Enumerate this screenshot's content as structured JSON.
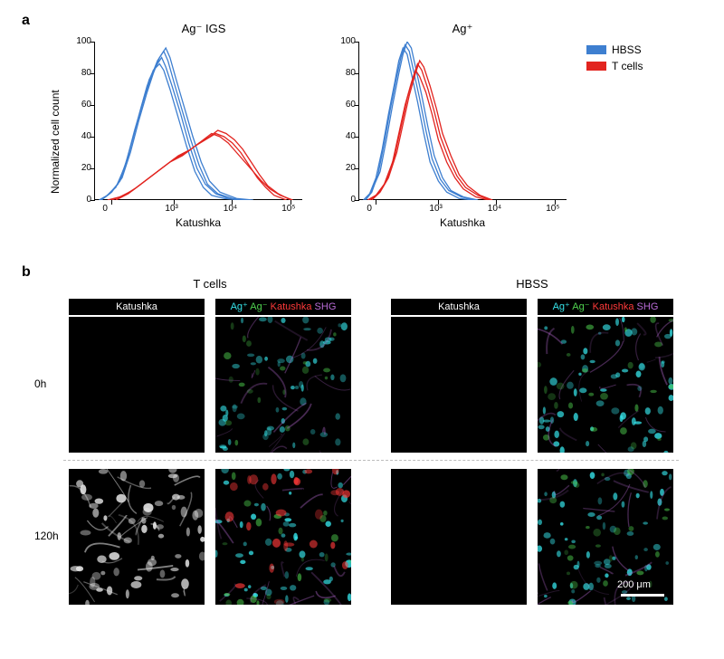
{
  "labels": {
    "panel_a": "a",
    "panel_b": "b"
  },
  "panel_a": {
    "chart1_title": "Ag⁻ IGS",
    "chart2_title": "Ag⁺",
    "ylabel": "Normalized cell count",
    "xlabel": "Katushka",
    "ylim": [
      0,
      100
    ],
    "ytick_step": 20,
    "yticks": [
      "0",
      "20",
      "40",
      "60",
      "80",
      "100"
    ],
    "xticks": [
      "0",
      "10³",
      "10⁴",
      "10⁵"
    ],
    "xtick_pos": [
      0.08,
      0.38,
      0.66,
      0.94
    ],
    "chart_bg": "#ffffff",
    "axis_color": "#000000",
    "colors": {
      "hbss": "#3e7fd0",
      "tcells": "#e2241f"
    },
    "line_width": 1.3,
    "legend": [
      {
        "label": "HBSS",
        "color": "#3e7fd0"
      },
      {
        "label": "T cells",
        "color": "#e2241f"
      }
    ],
    "chart1": {
      "hbss": [
        [
          [
            0.02,
            0
          ],
          [
            0.05,
            2
          ],
          [
            0.1,
            8
          ],
          [
            0.14,
            20
          ],
          [
            0.18,
            38
          ],
          [
            0.22,
            58
          ],
          [
            0.25,
            72
          ],
          [
            0.28,
            82
          ],
          [
            0.31,
            86
          ],
          [
            0.33,
            82
          ],
          [
            0.36,
            70
          ],
          [
            0.4,
            52
          ],
          [
            0.44,
            34
          ],
          [
            0.48,
            18
          ],
          [
            0.52,
            8
          ],
          [
            0.56,
            3
          ],
          [
            0.62,
            1
          ],
          [
            0.7,
            0
          ]
        ],
        [
          [
            0.02,
            0
          ],
          [
            0.06,
            3
          ],
          [
            0.11,
            10
          ],
          [
            0.15,
            24
          ],
          [
            0.19,
            44
          ],
          [
            0.23,
            62
          ],
          [
            0.26,
            76
          ],
          [
            0.29,
            84
          ],
          [
            0.32,
            90
          ],
          [
            0.34,
            84
          ],
          [
            0.37,
            72
          ],
          [
            0.41,
            55
          ],
          [
            0.45,
            36
          ],
          [
            0.49,
            20
          ],
          [
            0.53,
            10
          ],
          [
            0.58,
            4
          ],
          [
            0.64,
            1
          ],
          [
            0.72,
            0
          ]
        ],
        [
          [
            0.03,
            0
          ],
          [
            0.07,
            4
          ],
          [
            0.12,
            12
          ],
          [
            0.16,
            28
          ],
          [
            0.2,
            48
          ],
          [
            0.24,
            66
          ],
          [
            0.27,
            78
          ],
          [
            0.3,
            88
          ],
          [
            0.33,
            94
          ],
          [
            0.35,
            88
          ],
          [
            0.38,
            74
          ],
          [
            0.42,
            56
          ],
          [
            0.46,
            38
          ],
          [
            0.5,
            22
          ],
          [
            0.54,
            10
          ],
          [
            0.59,
            4
          ],
          [
            0.66,
            1
          ],
          [
            0.74,
            0
          ]
        ],
        [
          [
            0.03,
            0
          ],
          [
            0.08,
            5
          ],
          [
            0.13,
            14
          ],
          [
            0.17,
            30
          ],
          [
            0.21,
            50
          ],
          [
            0.25,
            68
          ],
          [
            0.28,
            80
          ],
          [
            0.31,
            90
          ],
          [
            0.34,
            96
          ],
          [
            0.36,
            90
          ],
          [
            0.39,
            76
          ],
          [
            0.43,
            58
          ],
          [
            0.47,
            40
          ],
          [
            0.51,
            24
          ],
          [
            0.55,
            12
          ],
          [
            0.6,
            5
          ],
          [
            0.68,
            1
          ],
          [
            0.76,
            0
          ]
        ]
      ],
      "tcells": [
        [
          [
            0.06,
            0
          ],
          [
            0.12,
            2
          ],
          [
            0.18,
            6
          ],
          [
            0.24,
            12
          ],
          [
            0.3,
            18
          ],
          [
            0.36,
            24
          ],
          [
            0.42,
            28
          ],
          [
            0.48,
            34
          ],
          [
            0.53,
            38
          ],
          [
            0.58,
            42
          ],
          [
            0.62,
            40
          ],
          [
            0.66,
            36
          ],
          [
            0.7,
            30
          ],
          [
            0.74,
            22
          ],
          [
            0.78,
            14
          ],
          [
            0.82,
            8
          ],
          [
            0.86,
            3
          ],
          [
            0.92,
            0
          ]
        ],
        [
          [
            0.08,
            0
          ],
          [
            0.14,
            3
          ],
          [
            0.2,
            8
          ],
          [
            0.26,
            14
          ],
          [
            0.32,
            20
          ],
          [
            0.38,
            26
          ],
          [
            0.44,
            30
          ],
          [
            0.5,
            36
          ],
          [
            0.55,
            40
          ],
          [
            0.59,
            44
          ],
          [
            0.63,
            42
          ],
          [
            0.67,
            38
          ],
          [
            0.71,
            32
          ],
          [
            0.75,
            24
          ],
          [
            0.79,
            16
          ],
          [
            0.83,
            9
          ],
          [
            0.88,
            4
          ],
          [
            0.94,
            0
          ]
        ],
        [
          [
            0.1,
            0
          ],
          [
            0.16,
            4
          ],
          [
            0.22,
            10
          ],
          [
            0.28,
            16
          ],
          [
            0.34,
            22
          ],
          [
            0.4,
            28
          ],
          [
            0.46,
            32
          ],
          [
            0.52,
            38
          ],
          [
            0.56,
            42
          ],
          [
            0.6,
            40
          ],
          [
            0.64,
            36
          ],
          [
            0.68,
            30
          ],
          [
            0.72,
            24
          ],
          [
            0.76,
            18
          ],
          [
            0.8,
            12
          ],
          [
            0.84,
            7
          ],
          [
            0.89,
            3
          ],
          [
            0.95,
            0
          ]
        ]
      ]
    },
    "chart2": {
      "hbss": [
        [
          [
            0.02,
            0
          ],
          [
            0.05,
            4
          ],
          [
            0.08,
            14
          ],
          [
            0.11,
            32
          ],
          [
            0.14,
            54
          ],
          [
            0.17,
            74
          ],
          [
            0.19,
            88
          ],
          [
            0.21,
            96
          ],
          [
            0.23,
            92
          ],
          [
            0.25,
            80
          ],
          [
            0.28,
            62
          ],
          [
            0.31,
            42
          ],
          [
            0.34,
            24
          ],
          [
            0.38,
            12
          ],
          [
            0.42,
            5
          ],
          [
            0.48,
            1
          ],
          [
            0.55,
            0
          ]
        ],
        [
          [
            0.03,
            0
          ],
          [
            0.06,
            5
          ],
          [
            0.09,
            16
          ],
          [
            0.12,
            36
          ],
          [
            0.15,
            58
          ],
          [
            0.18,
            78
          ],
          [
            0.2,
            90
          ],
          [
            0.22,
            98
          ],
          [
            0.24,
            94
          ],
          [
            0.26,
            82
          ],
          [
            0.29,
            64
          ],
          [
            0.32,
            44
          ],
          [
            0.35,
            26
          ],
          [
            0.39,
            13
          ],
          [
            0.43,
            6
          ],
          [
            0.49,
            2
          ],
          [
            0.56,
            0
          ]
        ],
        [
          [
            0.03,
            0
          ],
          [
            0.06,
            6
          ],
          [
            0.1,
            18
          ],
          [
            0.13,
            38
          ],
          [
            0.16,
            60
          ],
          [
            0.19,
            80
          ],
          [
            0.21,
            92
          ],
          [
            0.23,
            100
          ],
          [
            0.25,
            96
          ],
          [
            0.27,
            84
          ],
          [
            0.3,
            66
          ],
          [
            0.33,
            46
          ],
          [
            0.36,
            28
          ],
          [
            0.4,
            14
          ],
          [
            0.44,
            6
          ],
          [
            0.5,
            2
          ],
          [
            0.57,
            0
          ]
        ]
      ],
      "tcells": [
        [
          [
            0.04,
            0
          ],
          [
            0.08,
            3
          ],
          [
            0.12,
            10
          ],
          [
            0.16,
            24
          ],
          [
            0.19,
            42
          ],
          [
            0.22,
            60
          ],
          [
            0.25,
            74
          ],
          [
            0.27,
            82
          ],
          [
            0.29,
            78
          ],
          [
            0.32,
            68
          ],
          [
            0.35,
            54
          ],
          [
            0.38,
            38
          ],
          [
            0.42,
            24
          ],
          [
            0.46,
            14
          ],
          [
            0.5,
            7
          ],
          [
            0.56,
            2
          ],
          [
            0.62,
            0
          ]
        ],
        [
          [
            0.05,
            0
          ],
          [
            0.09,
            4
          ],
          [
            0.13,
            12
          ],
          [
            0.17,
            28
          ],
          [
            0.2,
            46
          ],
          [
            0.23,
            64
          ],
          [
            0.26,
            78
          ],
          [
            0.28,
            86
          ],
          [
            0.3,
            82
          ],
          [
            0.33,
            70
          ],
          [
            0.36,
            56
          ],
          [
            0.39,
            40
          ],
          [
            0.43,
            26
          ],
          [
            0.47,
            15
          ],
          [
            0.51,
            8
          ],
          [
            0.57,
            3
          ],
          [
            0.63,
            0
          ]
        ],
        [
          [
            0.06,
            0
          ],
          [
            0.1,
            5
          ],
          [
            0.14,
            14
          ],
          [
            0.18,
            30
          ],
          [
            0.21,
            48
          ],
          [
            0.24,
            66
          ],
          [
            0.27,
            80
          ],
          [
            0.29,
            88
          ],
          [
            0.31,
            84
          ],
          [
            0.34,
            72
          ],
          [
            0.37,
            58
          ],
          [
            0.4,
            42
          ],
          [
            0.44,
            28
          ],
          [
            0.48,
            16
          ],
          [
            0.52,
            9
          ],
          [
            0.58,
            3
          ],
          [
            0.64,
            0
          ]
        ]
      ]
    }
  },
  "panel_b": {
    "col1_title": "T cells",
    "col2_title": "HBSS",
    "sub_katushka": "Katushka",
    "merge_parts": [
      {
        "t": "Ag⁺",
        "c": "#35e2e8"
      },
      {
        "t": " Ag⁻",
        "c": "#4fd24f"
      },
      {
        "t": " Katushka",
        "c": "#ff3a3a"
      },
      {
        "t": " SHG",
        "c": "#b96bd6"
      }
    ],
    "row1_label": "0h",
    "row2_label": "120h",
    "scale_label": "200 μm",
    "cell_bg": "#000000",
    "cell_size": 150,
    "gap": 12,
    "group_gap": 44,
    "dash_color": "#bcbcbc",
    "micro_colors": {
      "cyan": "#35e2e8",
      "green": "#4fd24f",
      "red": "#ff3a3a",
      "magenta": "#b96bd6",
      "white": "#eaeaea"
    }
  }
}
